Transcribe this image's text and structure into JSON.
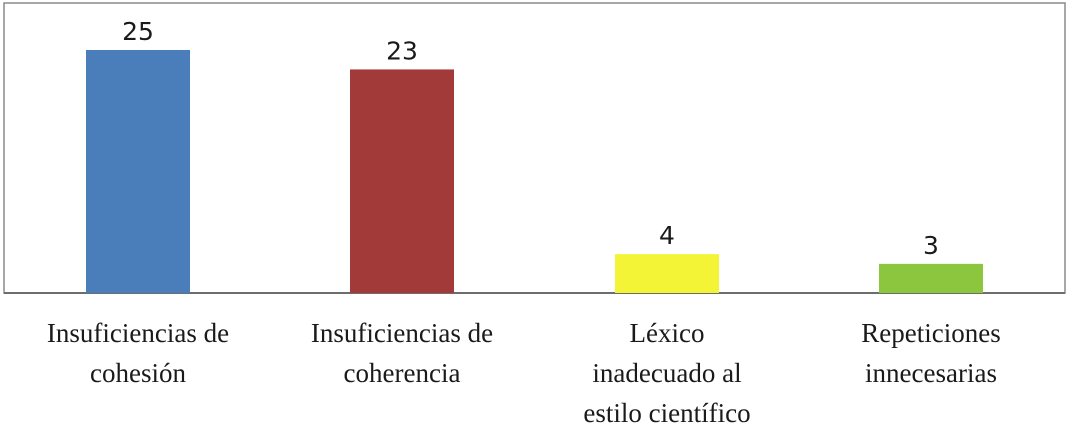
{
  "chart_data": {
    "type": "bar",
    "categories": [
      [
        "Insuficiencias de",
        "cohesión"
      ],
      [
        "Insuficiencias de",
        "coherencia"
      ],
      [
        "Léxico",
        "inadecuado al",
        "estilo científico"
      ],
      [
        "Repeticiones",
        "innecesarias"
      ]
    ],
    "values": [
      25,
      23,
      4,
      3
    ],
    "value_labels": [
      "25",
      "23",
      "4",
      "3"
    ],
    "colors": [
      "#4a7ebb",
      "#a33a3a",
      "#f4f437",
      "#8cc63f"
    ],
    "ylim": [
      0,
      25
    ],
    "grid": false,
    "legend": "none"
  }
}
